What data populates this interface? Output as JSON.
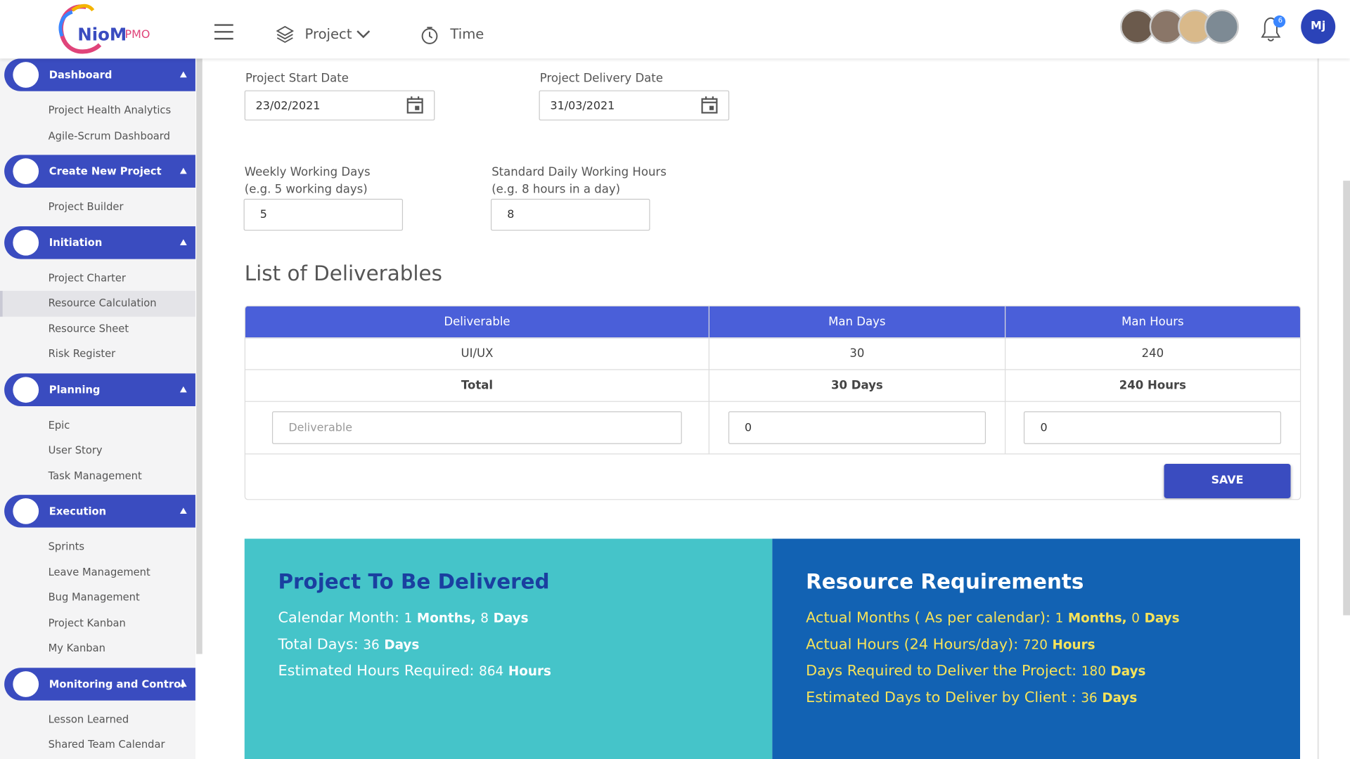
{
  "header": {
    "logo": "NioM",
    "logo_suffix": "PMO",
    "nav": [
      "Project",
      "Time"
    ],
    "notifications": "6",
    "user": "Mj"
  },
  "sidebar": [
    {
      "title": "Dashboard",
      "items": [
        "Project Health Analytics",
        "Agile-Scrum Dashboard"
      ]
    },
    {
      "title": "Create New Project",
      "items": [
        "Project Builder"
      ]
    },
    {
      "title": "Initiation",
      "items": [
        "Project Charter",
        "Resource Calculation",
        "Resource Sheet",
        "Risk Register"
      ]
    },
    {
      "title": "Planning",
      "items": [
        "Epic",
        "User Story",
        "Task Management"
      ]
    },
    {
      "title": "Execution",
      "items": [
        "Sprints",
        "Leave Management",
        "Bug Management",
        "Project Kanban",
        "My Kanban"
      ]
    },
    {
      "title": "Monitoring and Control",
      "items": [
        "Lesson Learned",
        "Shared Team Calendar"
      ]
    }
  ],
  "form": {
    "start_label": "Project Start Date",
    "start_value": "23/02/2021",
    "delivery_label": "Project Delivery Date",
    "delivery_value": "31/03/2021",
    "weekly_label": [
      "Weekly Working Days",
      "(e.g. 5 working days)"
    ],
    "weekly_value": "5",
    "daily_label": [
      "Standard Daily Working Hours",
      "(e.g. 8 hours in a day)"
    ],
    "daily_value": "8"
  },
  "deliverables": {
    "title": "List of Deliverables",
    "columns": [
      "Deliverable",
      "Man Days",
      "Man Hours"
    ],
    "rows": [
      [
        "UI/UX",
        "30",
        "240"
      ]
    ],
    "total": [
      "Total",
      "30 Days",
      "240 Hours"
    ],
    "inputs": [
      "Deliverable",
      "0",
      "0"
    ],
    "button": "SAVE"
  },
  "summary": {
    "left": {
      "title": "Project To Be Delivered",
      "lines": [
        {
          "label": "Calendar Month:",
          "parts": [
            "1",
            "Months,",
            "8",
            "Days"
          ]
        },
        {
          "label": "Total Days:",
          "parts": [
            "36",
            "Days"
          ]
        },
        {
          "label": "Estimated Hours Required:",
          "parts": [
            "864",
            "Hours"
          ]
        }
      ]
    },
    "right": {
      "title": "Resource Requirements",
      "lines": [
        {
          "label": "Actual Months ( As per calendar):",
          "parts": [
            "1",
            "Months,",
            "0",
            "Days"
          ]
        },
        {
          "label": "Actual Hours (24 Hours/day):",
          "parts": [
            "720",
            "Hours"
          ]
        },
        {
          "label": "Days Required to Deliver the Project:",
          "parts": [
            "180",
            "Days"
          ]
        },
        {
          "label": "Estimated Days to Deliver by Client :",
          "parts": [
            "36",
            "Days"
          ]
        }
      ]
    }
  }
}
